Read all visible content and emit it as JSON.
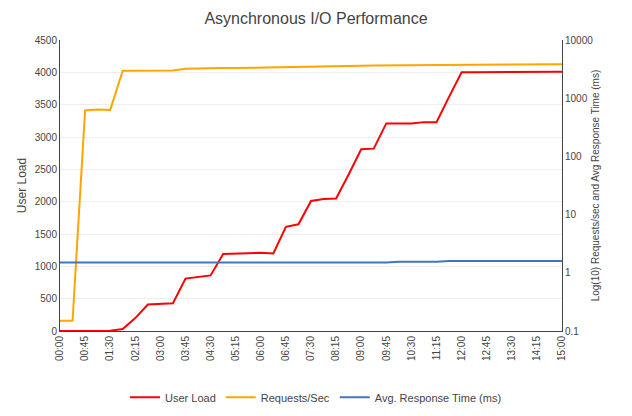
{
  "chart_data": {
    "type": "line",
    "title": "Asynchronous I/O Performance",
    "ylabel": "User Load",
    "y2label": "Log(10) Requests/sec and Avg Response Time (ms)",
    "categories": [
      "00:00",
      null,
      "00:45",
      null,
      "01:30",
      null,
      "02:15",
      null,
      "03:00",
      null,
      "03:45",
      null,
      "04:30",
      null,
      "05:15",
      null,
      "06:00",
      null,
      "06:45",
      null,
      "07:30",
      null,
      "08:15",
      null,
      "09:00",
      null,
      "09:45",
      null,
      "10:30",
      null,
      "11:15",
      null,
      "12:00",
      null,
      "12:45",
      null,
      "13:30",
      null,
      "14:15",
      null,
      "15:00"
    ],
    "series": [
      {
        "name": "User Load",
        "color": "#FF0000",
        "values": [
          0,
          0,
          0,
          5,
          5,
          30,
          200,
          410,
          420,
          430,
          810,
          830,
          860,
          1190,
          1200,
          1200,
          1210,
          1200,
          1610,
          1650,
          2010,
          2040,
          2050,
          2420,
          2810,
          2820,
          3210,
          3210,
          3210,
          3230,
          3230,
          3620,
          4000,
          4000,
          4000,
          4000,
          4000,
          4010,
          4010,
          4000,
          4010
        ]
      },
      {
        "name": "Requests/Sec",
        "color": "#FFA500",
        "axis": "y2",
        "values": [
          0.15,
          0.15,
          615,
          640,
          630,
          2970,
          2975,
          2980,
          2980,
          3000,
          3200,
          3250,
          3250,
          3290,
          3300,
          3320,
          3380,
          3420,
          3450,
          3500,
          3520,
          3540,
          3550,
          3570,
          3600,
          3650,
          3670,
          3680,
          3680,
          3700,
          3730,
          3750,
          3780,
          3790,
          3800,
          3820,
          3830,
          3840,
          3830,
          3840,
          3850
        ]
      },
      {
        "name": "Avg. Response Time (ms)",
        "color": "#4472C4",
        "axis": "y2",
        "values": [
          1.5,
          1.5,
          1.5,
          1.5,
          1.5,
          1.5,
          1.5,
          1.5,
          1.5,
          1.5,
          1.5,
          1.5,
          1.5,
          1.5,
          1.5,
          1.5,
          1.5,
          1.5,
          1.5,
          1.5,
          1.5,
          1.5,
          1.5,
          1.5,
          1.5,
          1.5,
          1.5,
          1.55,
          1.55,
          1.55,
          1.55,
          1.6,
          1.6,
          1.6,
          1.6,
          1.6,
          1.6,
          1.6,
          1.6,
          1.6,
          1.6
        ]
      }
    ],
    "ylim": [
      0,
      4500
    ],
    "yticks": [
      0,
      500,
      1000,
      1500,
      2000,
      2500,
      3000,
      3500,
      4000,
      4500
    ],
    "y2lim": [
      0.1,
      10000
    ],
    "y2ticks": [
      0.1,
      1,
      10,
      100,
      1000,
      10000
    ],
    "log": "y2",
    "grid": true,
    "legend": "bottom"
  }
}
